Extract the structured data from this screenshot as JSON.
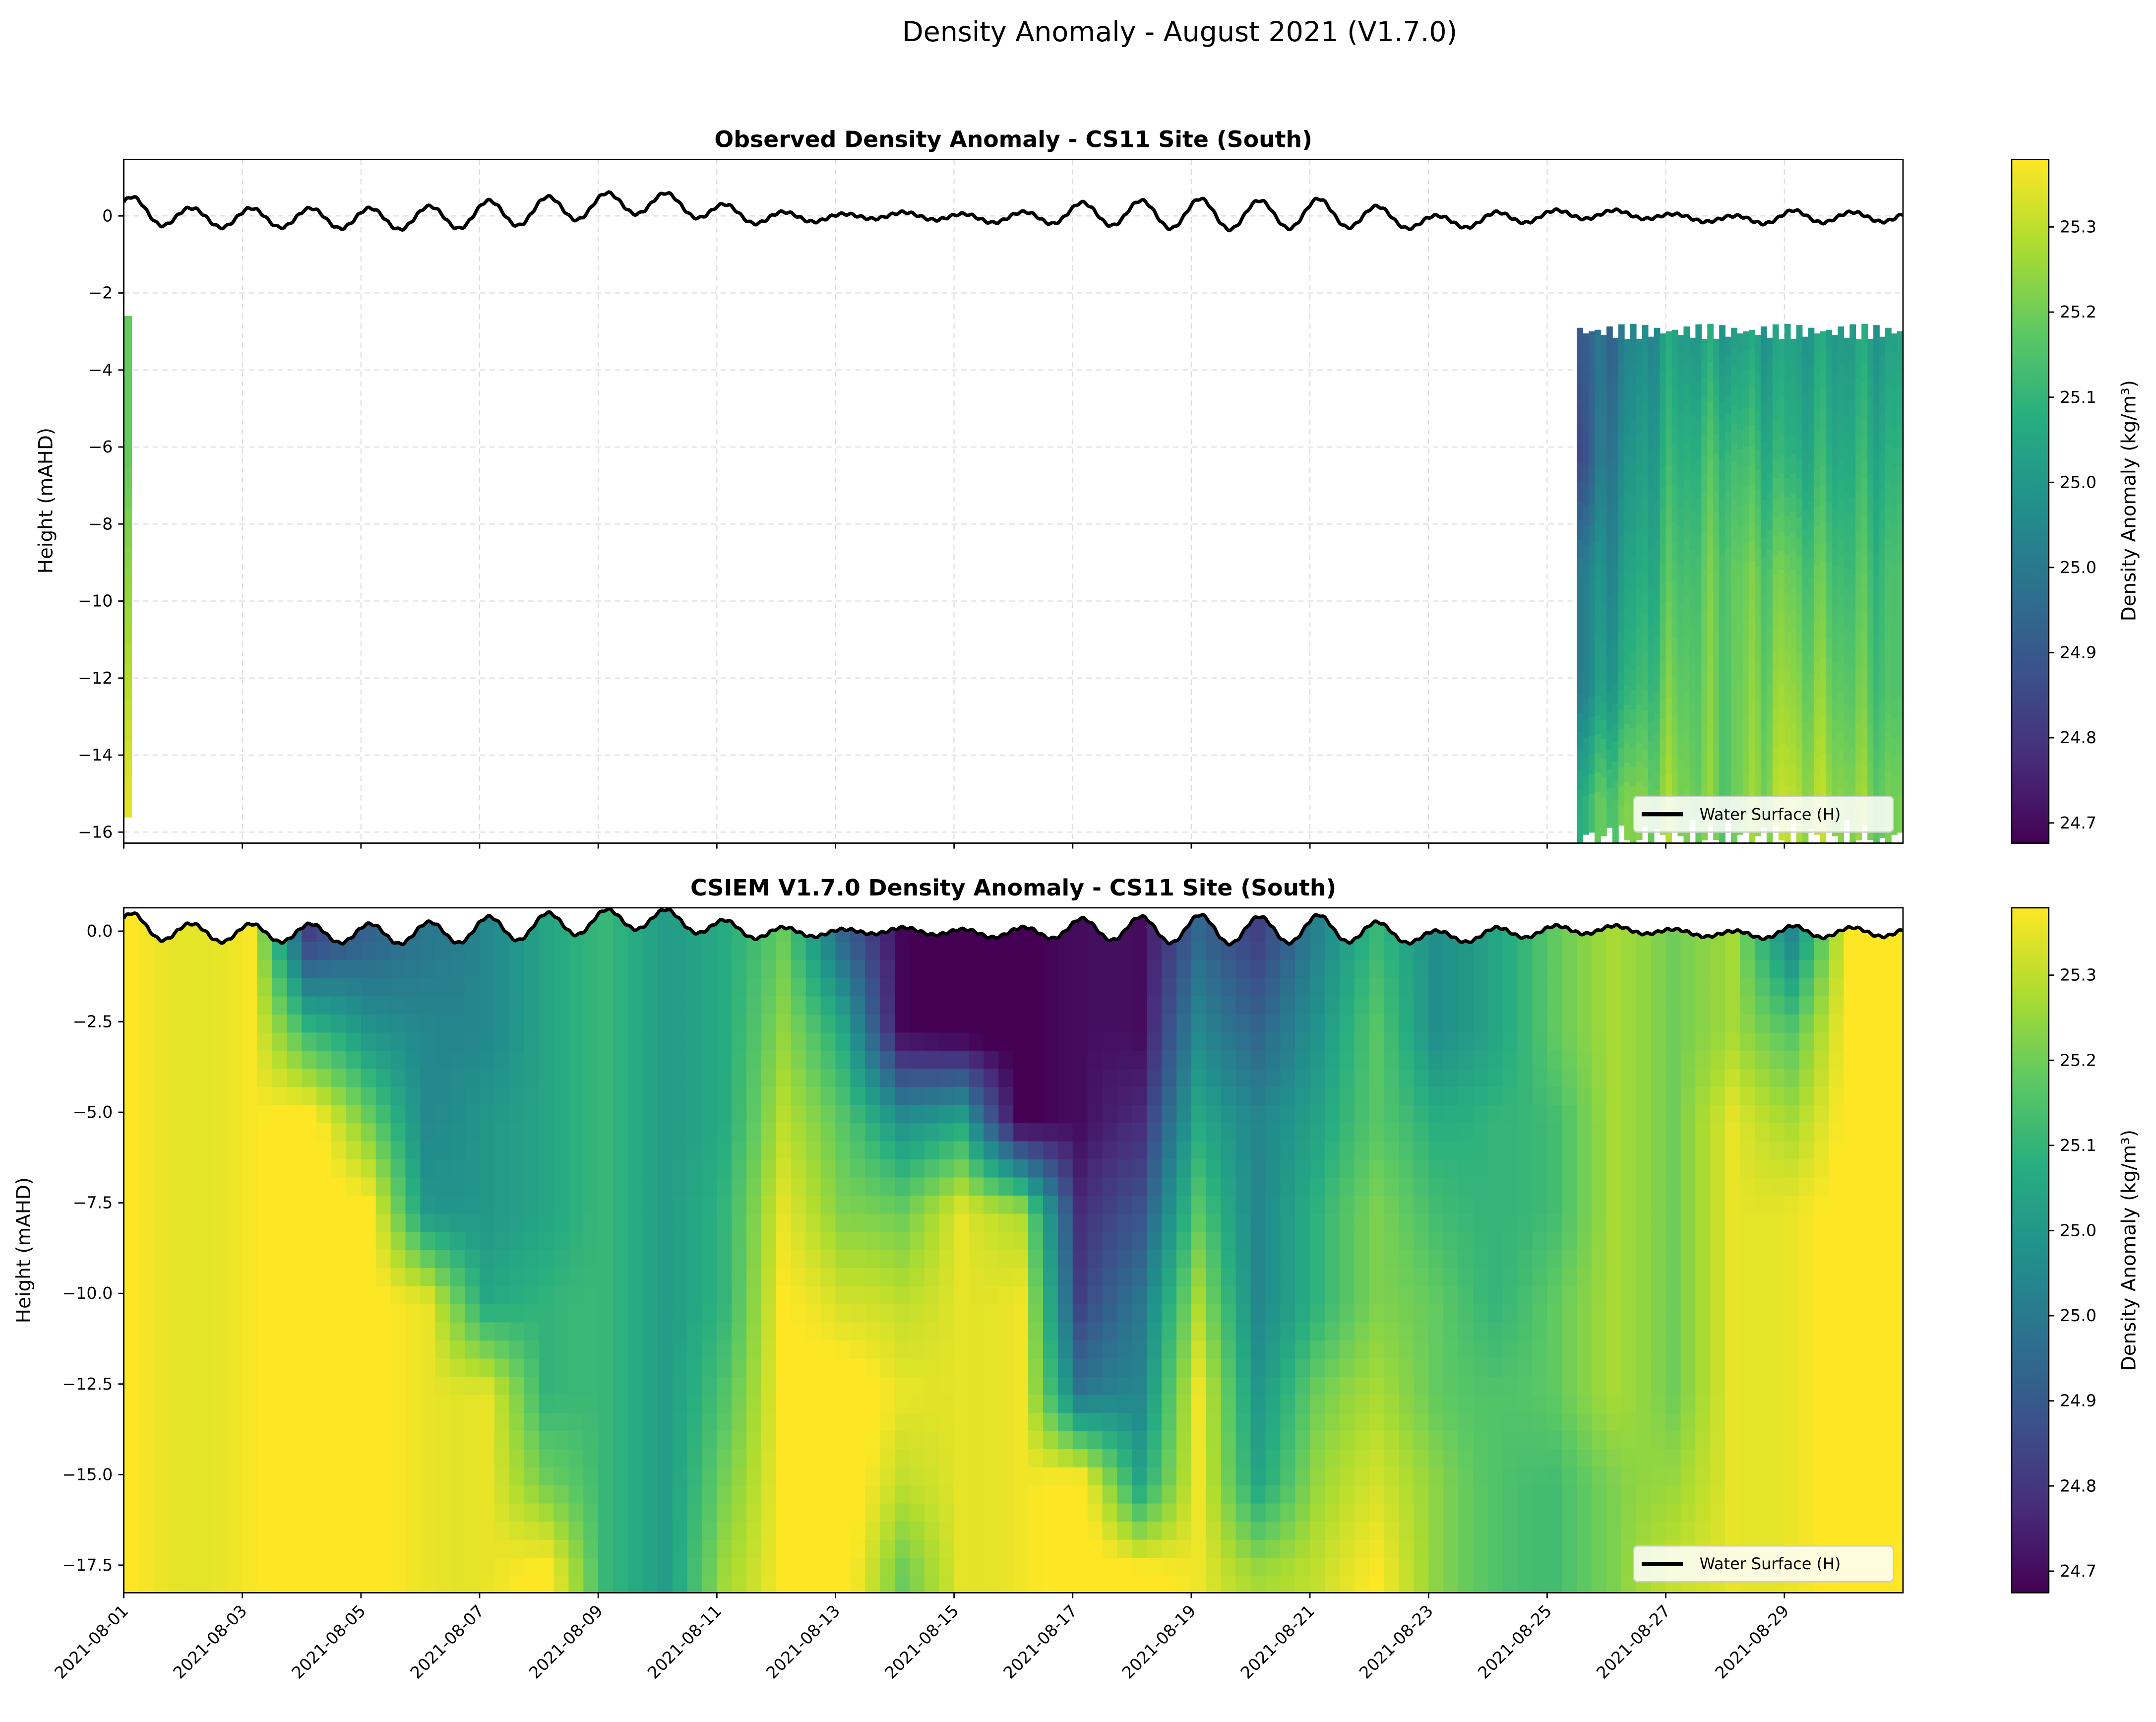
{
  "suptitle": "Density Anomaly - August 2021 (V1.7.0)",
  "colors": {
    "water_surface": "#000000",
    "grid": "#dddddd",
    "colormap": "viridis"
  },
  "chart_data": [
    {
      "type": "heatmap",
      "title": "Observed Density Anomaly - CS11 Site (South)",
      "ylabel": "Height (mAHD)",
      "ylim": [
        -16.3,
        1.46
      ],
      "xlim": [
        "2021-08-01",
        "2021-08-31"
      ],
      "yticks": [
        "0",
        "−2",
        "−4",
        "−6",
        "−8",
        "−10",
        "−12",
        "−14",
        "−16"
      ],
      "ytick_values": [
        0,
        -2,
        -4,
        -6,
        -8,
        -10,
        -12,
        -14,
        -16
      ],
      "grid": true,
      "legend": {
        "label": "Water Surface (H)",
        "placement": "lower-right"
      },
      "colorbar": {
        "label": "Density Anomaly (kg/m³)",
        "ticks": [
          "25.3",
          "25.2",
          "25.1",
          "25.0",
          "25.0",
          "24.9",
          "24.8",
          "24.7"
        ],
        "vmin": 24.63,
        "vmax": 25.38
      },
      "observed_profiles": {
        "depths": [
          -3,
          -6,
          -9,
          -12,
          -15
        ],
        "early_column": {
          "day": 1,
          "top": -2.6,
          "bottom": -15.6,
          "values": [
            25.2,
            25.2,
            25.25,
            25.3,
            25.35
          ]
        },
        "block": {
          "top": -3.0,
          "bottom": -15.9,
          "days": [
            25.5,
            26,
            27,
            28,
            29,
            30,
            31
          ],
          "values": [
            [
              24.85,
              24.8,
              24.95,
              24.95,
              25.1
            ],
            [
              24.9,
              24.95,
              25.0,
              25.05,
              25.2
            ],
            [
              25.05,
              25.1,
              25.15,
              25.2,
              25.25
            ],
            [
              25.05,
              25.15,
              25.2,
              25.2,
              25.2
            ],
            [
              25.05,
              25.1,
              25.2,
              25.25,
              25.3
            ],
            [
              25.05,
              25.1,
              25.15,
              25.2,
              25.25
            ],
            [
              25.05,
              25.1,
              25.15,
              25.15,
              25.2
            ]
          ]
        }
      }
    },
    {
      "type": "heatmap",
      "title": "CSIEM V1.7.0 Density Anomaly - CS11 Site (South)",
      "ylabel": "Height (mAHD)",
      "ylim": [
        -18.27,
        0.65
      ],
      "xlim": [
        "2021-08-01",
        "2021-08-31"
      ],
      "yticks": [
        "0.0",
        "−2.5",
        "−5.0",
        "−7.5",
        "−10.0",
        "−12.5",
        "−15.0",
        "−17.5"
      ],
      "ytick_values": [
        0,
        -2.5,
        -5,
        -7.5,
        -10,
        -12.5,
        -15,
        -17.5
      ],
      "xticks": [
        "2021-08-01",
        "2021-08-03",
        "2021-08-05",
        "2021-08-07",
        "2021-08-09",
        "2021-08-11",
        "2021-08-13",
        "2021-08-15",
        "2021-08-17",
        "2021-08-19",
        "2021-08-21",
        "2021-08-23",
        "2021-08-25",
        "2021-08-27",
        "2021-08-29"
      ],
      "legend": {
        "label": "Water Surface (H)",
        "placement": "lower-right"
      },
      "colorbar": {
        "label": "Density Anomaly (kg/m³)",
        "ticks": [
          "25.3",
          "25.2",
          "25.1",
          "25.0",
          "25.0",
          "24.9",
          "24.8",
          "24.7"
        ],
        "vmin": 24.63,
        "vmax": 25.38
      },
      "model_profiles": {
        "depths": [
          0,
          -2.5,
          -5,
          -7.5,
          -10,
          -12.5,
          -15,
          -17.5
        ],
        "days": [
          1,
          2,
          3,
          4,
          5,
          6,
          7,
          8,
          9,
          10,
          11,
          12,
          13,
          14,
          15,
          16,
          17,
          18,
          19,
          20,
          21,
          22,
          23,
          24,
          25,
          26,
          27,
          28,
          29,
          30,
          31
        ],
        "values": [
          [
            25.38,
            25.38,
            25.38,
            25.38,
            25.38,
            25.38,
            25.38,
            25.38
          ],
          [
            25.38,
            25.38,
            25.38,
            25.38,
            25.38,
            25.38,
            25.38,
            25.38
          ],
          [
            25.38,
            25.38,
            25.38,
            25.38,
            25.38,
            25.38,
            25.38,
            25.38
          ],
          [
            24.75,
            25.1,
            25.38,
            25.38,
            25.38,
            25.38,
            25.38,
            25.38
          ],
          [
            24.85,
            25.0,
            25.2,
            25.38,
            25.38,
            25.38,
            25.38,
            25.38
          ],
          [
            24.95,
            25.0,
            25.0,
            25.05,
            25.38,
            25.38,
            25.38,
            25.38
          ],
          [
            25.0,
            25.0,
            25.05,
            25.05,
            25.1,
            25.38,
            25.38,
            25.38
          ],
          [
            25.05,
            25.05,
            25.05,
            25.05,
            25.1,
            25.1,
            25.2,
            25.38
          ],
          [
            25.1,
            25.1,
            25.1,
            25.1,
            25.1,
            25.1,
            25.1,
            25.1
          ],
          [
            25.05,
            25.05,
            25.05,
            25.05,
            25.05,
            25.05,
            25.05,
            25.05
          ],
          [
            25.12,
            25.12,
            25.12,
            25.15,
            25.15,
            25.2,
            25.25,
            25.3
          ],
          [
            25.2,
            25.25,
            25.3,
            25.35,
            25.38,
            25.38,
            25.38,
            25.38
          ],
          [
            24.85,
            25.05,
            25.15,
            25.2,
            25.3,
            25.38,
            25.38,
            25.38
          ],
          [
            24.63,
            24.63,
            25.0,
            25.2,
            25.3,
            25.35,
            25.3,
            25.2
          ],
          [
            24.63,
            24.63,
            25.1,
            25.38,
            25.38,
            25.38,
            25.38,
            25.38
          ],
          [
            24.63,
            24.63,
            24.63,
            25.3,
            25.38,
            25.38,
            25.38,
            25.38
          ],
          [
            24.63,
            24.63,
            24.63,
            24.7,
            24.75,
            24.9,
            25.38,
            25.38
          ],
          [
            24.63,
            24.63,
            24.7,
            24.8,
            24.9,
            24.95,
            25.05,
            25.38
          ],
          [
            24.9,
            25.0,
            25.1,
            25.2,
            25.3,
            25.38,
            25.38,
            25.38
          ],
          [
            24.8,
            24.9,
            25.0,
            25.0,
            25.0,
            25.05,
            25.1,
            25.3
          ],
          [
            24.95,
            25.0,
            25.05,
            25.1,
            25.1,
            25.2,
            25.25,
            25.3
          ],
          [
            25.1,
            25.15,
            25.15,
            25.2,
            25.2,
            25.25,
            25.3,
            25.35
          ],
          [
            25.0,
            25.0,
            25.1,
            25.15,
            25.2,
            25.2,
            25.25,
            25.25
          ],
          [
            25.1,
            25.1,
            25.15,
            25.15,
            25.15,
            25.2,
            25.2,
            25.2
          ],
          [
            25.2,
            25.2,
            25.15,
            25.15,
            25.2,
            25.2,
            25.15,
            25.15
          ],
          [
            25.25,
            25.25,
            25.25,
            25.25,
            25.25,
            25.25,
            25.2,
            25.2
          ],
          [
            25.2,
            25.2,
            25.2,
            25.2,
            25.2,
            25.2,
            25.25,
            25.3
          ],
          [
            25.3,
            25.3,
            25.38,
            25.38,
            25.38,
            25.38,
            25.38,
            25.38
          ],
          [
            25.0,
            25.2,
            25.3,
            25.38,
            25.38,
            25.38,
            25.38,
            25.38
          ],
          [
            25.38,
            25.38,
            25.38,
            25.38,
            25.38,
            25.38,
            25.38,
            25.38
          ],
          [
            25.38,
            25.38,
            25.38,
            25.38,
            25.38,
            25.38,
            25.38,
            25.38
          ]
        ]
      }
    }
  ],
  "water_surface": {
    "name": "Water Surface (H)",
    "days": [
      1,
      2,
      3,
      4,
      5,
      6,
      7,
      8,
      9,
      10,
      11,
      12,
      13,
      14,
      15,
      16,
      17,
      18,
      19,
      20,
      21,
      22,
      23,
      24,
      25,
      26,
      27,
      28,
      29,
      30
    ],
    "daily_high": [
      0.5,
      0.2,
      0.2,
      0.2,
      0.2,
      0.25,
      0.4,
      0.5,
      0.6,
      0.6,
      0.3,
      0.1,
      0.05,
      0.1,
      0.05,
      0.1,
      0.35,
      0.4,
      0.45,
      0.4,
      0.45,
      0.25,
      0.0,
      0.1,
      0.15,
      0.15,
      0.05,
      0.0,
      0.15,
      0.1
    ],
    "daily_low": [
      -0.2,
      -0.3,
      -0.3,
      -0.3,
      -0.35,
      -0.35,
      -0.3,
      -0.2,
      0.0,
      0.1,
      -0.2,
      -0.2,
      -0.1,
      -0.05,
      -0.15,
      -0.2,
      -0.2,
      -0.3,
      -0.35,
      -0.35,
      -0.3,
      -0.3,
      -0.35,
      -0.25,
      -0.1,
      -0.05,
      -0.1,
      -0.2,
      -0.2,
      -0.15
    ]
  }
}
